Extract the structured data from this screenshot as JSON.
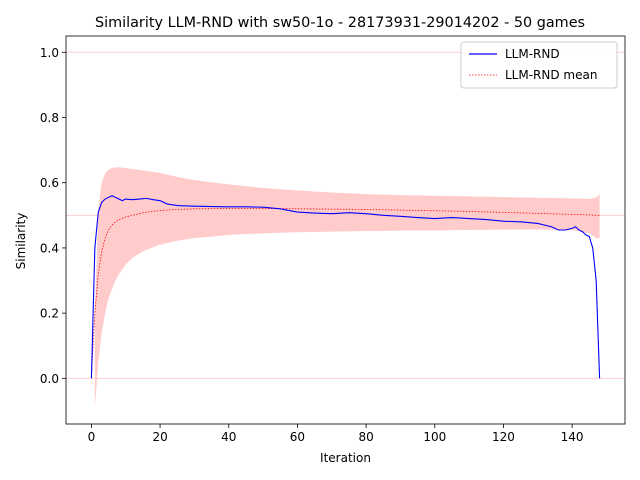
{
  "chart_data": {
    "type": "line",
    "title": "Similarity LLM-RND with sw50-1o - 28173931-29014202 - 50 games",
    "xlabel": "Iteration",
    "ylabel": "Similarity",
    "xlim": [
      -7.4,
      155.4
    ],
    "ylim": [
      -0.14,
      1.05
    ],
    "xticks": [
      0,
      20,
      40,
      60,
      80,
      100,
      120,
      140
    ],
    "yticks": [
      0.0,
      0.2,
      0.4,
      0.6,
      0.8,
      1.0
    ],
    "xtick_labels": [
      "0",
      "20",
      "40",
      "60",
      "80",
      "100",
      "120",
      "140"
    ],
    "ytick_labels": [
      "0.0",
      "0.2",
      "0.4",
      "0.6",
      "0.8",
      "1.0"
    ],
    "reference_lines": [
      0.0,
      0.5,
      1.0
    ],
    "grid": false,
    "legend_position": "top-right",
    "colors": {
      "llm_rnd": "#0000ff",
      "mean": "#ff0000",
      "band": "#ffc8c8",
      "reference": "#ffd0d0"
    },
    "series": [
      {
        "name": "LLM-RND",
        "x": [
          0,
          1,
          2,
          3,
          4,
          5,
          6,
          7,
          8,
          9,
          10,
          12,
          14,
          16,
          18,
          20,
          22,
          25,
          30,
          35,
          40,
          45,
          50,
          55,
          60,
          65,
          70,
          75,
          80,
          85,
          90,
          95,
          100,
          105,
          110,
          115,
          120,
          125,
          130,
          132,
          134,
          136,
          138,
          140,
          141,
          142,
          143,
          144,
          145,
          146,
          147,
          148
        ],
        "values": [
          0.0,
          0.4,
          0.51,
          0.54,
          0.55,
          0.555,
          0.56,
          0.555,
          0.55,
          0.545,
          0.55,
          0.548,
          0.55,
          0.552,
          0.548,
          0.545,
          0.535,
          0.53,
          0.528,
          0.527,
          0.526,
          0.526,
          0.525,
          0.52,
          0.51,
          0.507,
          0.505,
          0.508,
          0.505,
          0.5,
          0.497,
          0.493,
          0.49,
          0.493,
          0.49,
          0.487,
          0.482,
          0.48,
          0.475,
          0.47,
          0.465,
          0.455,
          0.455,
          0.46,
          0.465,
          0.455,
          0.45,
          0.44,
          0.435,
          0.4,
          0.3,
          0.0
        ]
      },
      {
        "name": "LLM-RND mean",
        "x": [
          0,
          1,
          2,
          3,
          4,
          5,
          6,
          7,
          8,
          10,
          12,
          15,
          20,
          25,
          30,
          40,
          50,
          60,
          70,
          80,
          90,
          100,
          110,
          120,
          130,
          140,
          148
        ],
        "values": [
          0.0,
          0.2,
          0.32,
          0.39,
          0.43,
          0.455,
          0.47,
          0.48,
          0.487,
          0.495,
          0.5,
          0.508,
          0.515,
          0.518,
          0.52,
          0.521,
          0.521,
          0.52,
          0.519,
          0.518,
          0.516,
          0.514,
          0.512,
          0.509,
          0.506,
          0.503,
          0.5
        ]
      }
    ],
    "band": {
      "x": [
        1,
        2,
        3,
        4,
        5,
        6,
        7,
        8,
        10,
        12,
        15,
        20,
        25,
        30,
        40,
        50,
        60,
        70,
        80,
        90,
        100,
        110,
        120,
        130,
        140,
        145,
        147,
        148
      ],
      "upper": [
        0.2,
        0.52,
        0.6,
        0.63,
        0.64,
        0.645,
        0.647,
        0.647,
        0.645,
        0.642,
        0.638,
        0.63,
        0.618,
        0.608,
        0.595,
        0.584,
        0.576,
        0.57,
        0.565,
        0.562,
        0.56,
        0.558,
        0.556,
        0.554,
        0.552,
        0.55,
        0.555,
        0.565
      ],
      "lower": [
        -0.09,
        0.05,
        0.14,
        0.2,
        0.245,
        0.275,
        0.3,
        0.32,
        0.35,
        0.37,
        0.39,
        0.41,
        0.422,
        0.43,
        0.44,
        0.445,
        0.448,
        0.45,
        0.452,
        0.453,
        0.454,
        0.455,
        0.456,
        0.457,
        0.455,
        0.445,
        0.43,
        0.43
      ]
    }
  }
}
